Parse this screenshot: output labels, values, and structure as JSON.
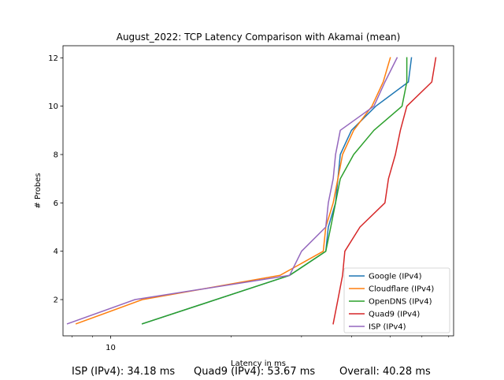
{
  "chart_data": {
    "type": "line",
    "title": "August_2022: TCP Latency Comparison with Akamai (mean)",
    "xlabel": "Latency in ms",
    "ylabel": "# Probes",
    "xscale": "log",
    "xlim": [
      7.6,
      72
    ],
    "ylim": [
      0.5,
      12.5
    ],
    "x_tick_labels": [
      {
        "value": 10,
        "label": "10"
      }
    ],
    "y_ticks": [
      2,
      4,
      6,
      8,
      10,
      12
    ],
    "legend_position": "lower right",
    "grid": false,
    "series": [
      {
        "name": "Google (IPv4)",
        "color": "#1f77b4",
        "points": [
          [
            12.0,
            1
          ],
          [
            28.0,
            3
          ],
          [
            34.5,
            4
          ],
          [
            35.0,
            5
          ],
          [
            36.5,
            6
          ],
          [
            37.0,
            7
          ],
          [
            37.5,
            8
          ],
          [
            40.0,
            9
          ],
          [
            46.0,
            10
          ],
          [
            55.5,
            11
          ],
          [
            56.5,
            12
          ]
        ]
      },
      {
        "name": "Cloudflare (IPv4)",
        "color": "#ff7f0e",
        "points": [
          [
            8.2,
            1
          ],
          [
            12.0,
            2
          ],
          [
            26.5,
            3
          ],
          [
            34.0,
            4
          ],
          [
            34.5,
            5
          ],
          [
            36.0,
            6
          ],
          [
            37.0,
            7
          ],
          [
            38.0,
            8
          ],
          [
            40.5,
            9
          ],
          [
            45.0,
            10
          ],
          [
            48.0,
            11
          ],
          [
            50.0,
            12
          ]
        ]
      },
      {
        "name": "OpenDNS (IPv4)",
        "color": "#2ca02c",
        "points": [
          [
            12.0,
            1
          ],
          [
            28.0,
            3
          ],
          [
            34.5,
            4
          ],
          [
            35.5,
            5
          ],
          [
            36.5,
            6
          ],
          [
            37.5,
            7
          ],
          [
            40.5,
            8
          ],
          [
            45.5,
            9
          ],
          [
            53.5,
            10
          ],
          [
            55.0,
            11
          ],
          [
            55.0,
            12
          ]
        ]
      },
      {
        "name": "Quad9 (IPv4)",
        "color": "#d62728",
        "points": [
          [
            36.0,
            1
          ],
          [
            37.0,
            2
          ],
          [
            38.0,
            3
          ],
          [
            38.5,
            4
          ],
          [
            42.0,
            5
          ],
          [
            48.5,
            6
          ],
          [
            49.5,
            7
          ],
          [
            51.5,
            8
          ],
          [
            53.0,
            9
          ],
          [
            55.0,
            10
          ],
          [
            63.5,
            11
          ],
          [
            65.0,
            12
          ]
        ]
      },
      {
        "name": "ISP (IPv4)",
        "color": "#9467bd",
        "points": [
          [
            7.8,
            1
          ],
          [
            11.5,
            2
          ],
          [
            28.0,
            3
          ],
          [
            30.0,
            4
          ],
          [
            34.5,
            5
          ],
          [
            35.0,
            6
          ],
          [
            36.0,
            7
          ],
          [
            36.5,
            8
          ],
          [
            37.5,
            9
          ],
          [
            45.5,
            10
          ],
          [
            48.5,
            11
          ],
          [
            52.0,
            12
          ]
        ]
      }
    ]
  },
  "footer": {
    "isp": "ISP (IPv4): 34.18 ms",
    "quad9": "Quad9 (IPv4): 53.67 ms",
    "overall": "Overall: 40.28 ms"
  }
}
